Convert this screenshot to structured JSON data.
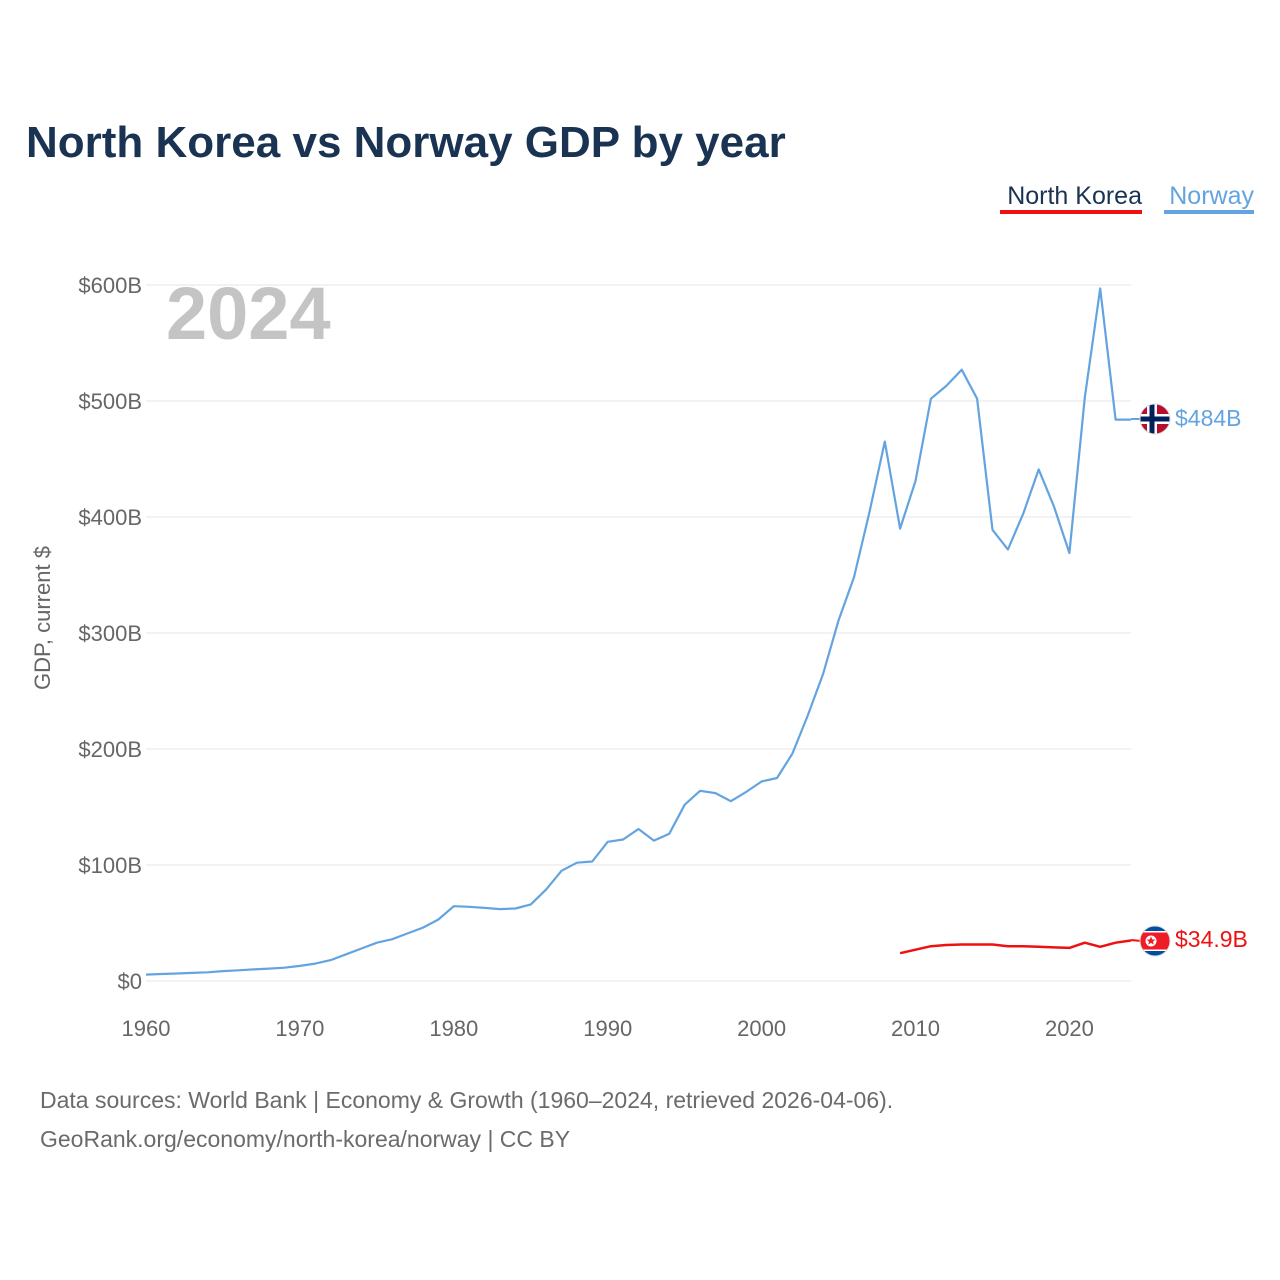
{
  "chart_data": {
    "type": "line",
    "title": "North Korea vs Norway GDP by year",
    "current_year_label": "2024",
    "ylabel": "GDP, current $",
    "xlabel": "",
    "xlim": [
      1960,
      2024
    ],
    "ylim": [
      0,
      600
    ],
    "y_unit": "billion current US$",
    "grid": true,
    "legend_position": "top-right",
    "x_ticks": [
      1960,
      1970,
      1980,
      1990,
      2000,
      2010,
      2020
    ],
    "x_tick_labels": [
      "1960",
      "1970",
      "1980",
      "1990",
      "2000",
      "2010",
      "2020"
    ],
    "y_ticks": [
      0,
      100,
      200,
      300,
      400,
      500,
      600
    ],
    "y_tick_labels": [
      "$0",
      "$100B",
      "$200B",
      "$300B",
      "$400B",
      "$500B",
      "$600B"
    ],
    "series": [
      {
        "name": "North Korea",
        "color": "#ee1111",
        "end_label": "$34.9B",
        "flag": "north-korea-flag",
        "x": [
          2009,
          2010,
          2011,
          2012,
          2013,
          2014,
          2015,
          2016,
          2017,
          2018,
          2019,
          2020,
          2021,
          2022,
          2023,
          2024
        ],
        "values": [
          24,
          27,
          30,
          31,
          31.5,
          31.5,
          31.5,
          30,
          30,
          29.5,
          29,
          28.5,
          33,
          29.5,
          33,
          34.9
        ]
      },
      {
        "name": "Norway",
        "color": "#63a4e0",
        "end_label": "$484B",
        "flag": "norway-flag",
        "x": [
          1960,
          1961,
          1962,
          1963,
          1964,
          1965,
          1966,
          1967,
          1968,
          1969,
          1970,
          1971,
          1972,
          1973,
          1974,
          1975,
          1976,
          1977,
          1978,
          1979,
          1980,
          1981,
          1982,
          1983,
          1984,
          1985,
          1986,
          1987,
          1988,
          1989,
          1990,
          1991,
          1992,
          1993,
          1994,
          1995,
          1996,
          1997,
          1998,
          1999,
          2000,
          2001,
          2002,
          2003,
          2004,
          2005,
          2006,
          2007,
          2008,
          2009,
          2010,
          2011,
          2012,
          2013,
          2014,
          2015,
          2016,
          2017,
          2018,
          2019,
          2020,
          2021,
          2022,
          2023,
          2024
        ],
        "values": [
          5.5,
          6,
          6.5,
          7,
          7.5,
          8.5,
          9.2,
          10,
          10.7,
          11.5,
          13,
          15,
          18,
          23,
          28,
          33,
          36,
          41,
          46,
          53,
          64.5,
          64,
          63,
          62,
          62.5,
          66,
          79,
          95,
          102,
          103,
          120,
          122,
          131,
          121,
          127,
          152,
          164,
          162,
          155,
          163,
          172,
          175,
          196,
          229,
          265,
          311,
          348,
          404,
          465,
          390,
          431,
          502,
          513,
          527,
          502,
          389,
          372,
          403,
          441,
          409,
          369,
          503,
          597,
          484,
          484
        ]
      }
    ],
    "source_line1": "Data sources: World Bank | Economy & Growth (1960–2024, retrieved 2026-04-06).",
    "source_line2": "GeoRank.org/economy/north-korea/norway | CC BY"
  }
}
